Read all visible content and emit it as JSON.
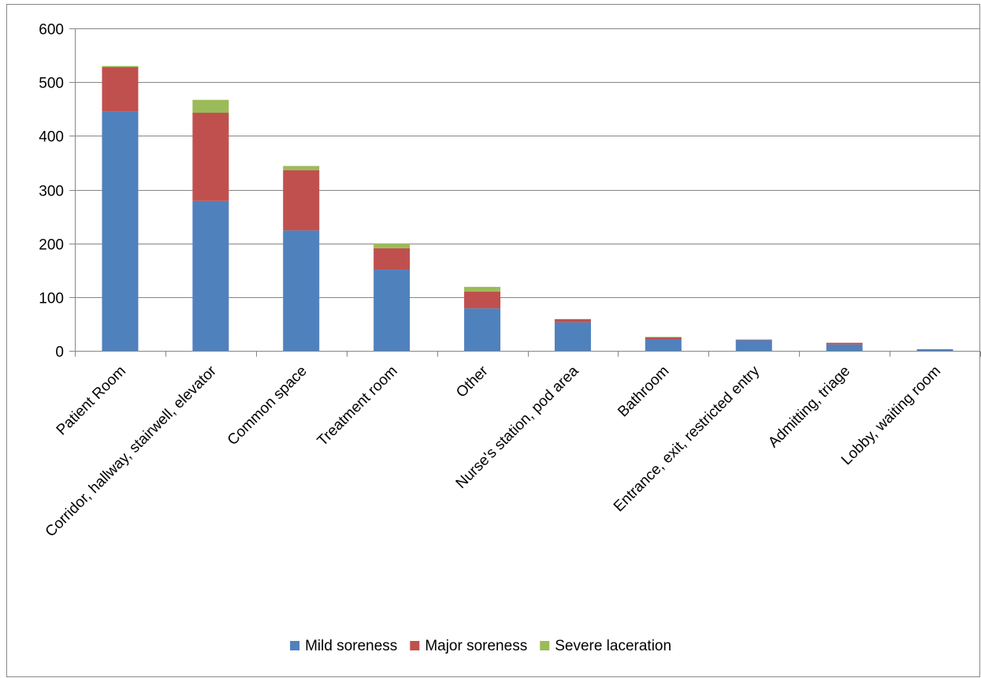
{
  "chart_data": {
    "type": "bar",
    "stacked": true,
    "title": "",
    "xlabel": "",
    "ylabel": "",
    "ylim": [
      0,
      600
    ],
    "yticks": [
      0,
      100,
      200,
      300,
      400,
      500,
      600
    ],
    "grid": true,
    "legend_position": "bottom",
    "categories": [
      "Patient Room",
      "Corridor, hallway, stairwell, elevator",
      "Common space",
      "Treatment room",
      "Other",
      "Nurse's station, pod area",
      "Bathroom",
      "Entrance, exit, restricted entry",
      "Admitting, triage",
      "Lobby, waiting room"
    ],
    "series": [
      {
        "name": "Mild soreness",
        "color": "#4F81BD",
        "values": [
          445,
          279,
          224,
          151,
          79,
          53,
          22,
          20,
          12,
          3
        ]
      },
      {
        "name": "Major soreness",
        "color": "#C0504D",
        "values": [
          83,
          164,
          112,
          40,
          31,
          6,
          3,
          1,
          3,
          0
        ]
      },
      {
        "name": "Severe laceration",
        "color": "#9BBB59",
        "values": [
          2,
          24,
          8,
          9,
          9,
          0,
          1,
          0,
          0,
          0
        ]
      }
    ]
  }
}
